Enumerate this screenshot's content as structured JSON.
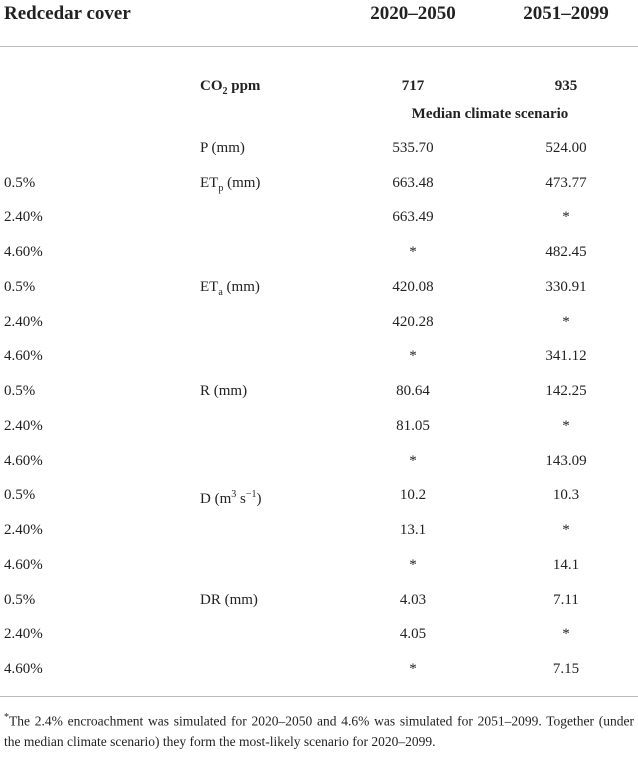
{
  "table": {
    "header": [
      "Redcedar cover",
      null,
      "2020–2050",
      "2051–2099"
    ],
    "co2_row": [
      null,
      [
        {
          "text": "CO"
        },
        {
          "text": "2",
          "style": "sub"
        },
        {
          "text": " ppm"
        }
      ],
      "717",
      "935"
    ],
    "scenario": "Median climate scenario",
    "rows": [
      [
        null,
        [
          {
            "text": "P (mm)"
          }
        ],
        "535.70",
        "524.00"
      ],
      [
        "0.5%",
        [
          {
            "text": "ET"
          },
          {
            "text": "p",
            "style": "sub"
          },
          {
            "text": " (mm)"
          }
        ],
        "663.48",
        "473.77"
      ],
      [
        "2.40%",
        null,
        "663.49",
        "*"
      ],
      [
        "4.60%",
        null,
        "*",
        "482.45"
      ],
      [
        "0.5%",
        [
          {
            "text": "ET"
          },
          {
            "text": "a",
            "style": "sub"
          },
          {
            "text": " (mm)"
          }
        ],
        "420.08",
        "330.91"
      ],
      [
        "2.40%",
        null,
        "420.28",
        "*"
      ],
      [
        "4.60%",
        null,
        "*",
        "341.12"
      ],
      [
        "0.5%",
        [
          {
            "text": "R (mm)"
          }
        ],
        "80.64",
        "142.25"
      ],
      [
        "2.40%",
        null,
        "81.05",
        "*"
      ],
      [
        "4.60%",
        null,
        "*",
        "143.09"
      ],
      [
        "0.5%",
        [
          {
            "text": "D (m"
          },
          {
            "text": "3",
            "style": "sup"
          },
          {
            "text": " s"
          },
          {
            "text": "−1",
            "style": "sup"
          },
          {
            "text": ")"
          }
        ],
        "10.2",
        "10.3"
      ],
      [
        "2.40%",
        null,
        "13.1",
        "*"
      ],
      [
        "4.60%",
        null,
        "*",
        "14.1"
      ],
      [
        "0.5%",
        [
          {
            "text": "DR (mm)"
          }
        ],
        "4.03",
        "7.11"
      ],
      [
        "2.40%",
        null,
        "4.05",
        "*"
      ],
      [
        "4.60%",
        null,
        "*",
        "7.15"
      ]
    ]
  },
  "footnote": {
    "mark": "*",
    "text": "The 2.4% encroachment was simulated for 2020–2050 and 4.6% was simulated for 2051–2099. Together (under the median climate scenario) they form the most-likely scenario for 2020–2099."
  }
}
